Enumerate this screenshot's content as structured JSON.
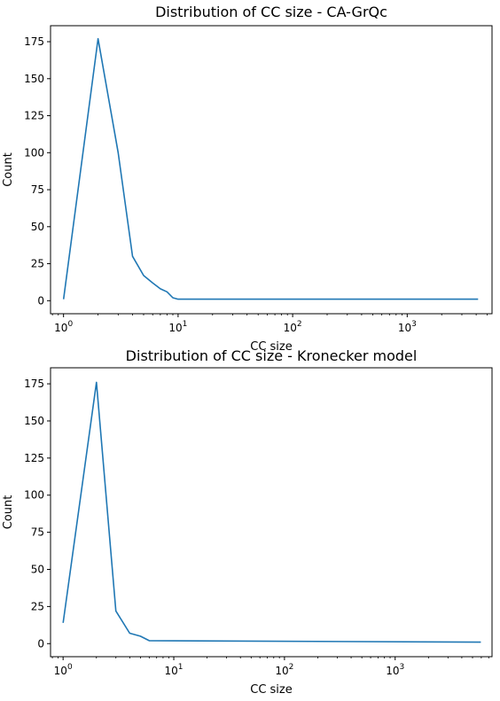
{
  "chart_data": [
    {
      "type": "line",
      "title": "Distribution of CC size - CA-GrQc",
      "xlabel": "CC size",
      "ylabel": "Count",
      "xscale": "log",
      "xlim": [
        0.77,
        5500
      ],
      "ylim": [
        -8.8,
        185.8
      ],
      "grid": false,
      "xticks": [
        {
          "value": 1,
          "label": "10",
          "exp": "0"
        },
        {
          "value": 10,
          "label": "10",
          "exp": "1"
        },
        {
          "value": 100,
          "label": "10",
          "exp": "2"
        },
        {
          "value": 1000,
          "label": "10",
          "exp": "3"
        }
      ],
      "yticks": [
        0,
        25,
        50,
        75,
        100,
        125,
        150,
        175
      ],
      "series": [
        {
          "color": "#1f77b4",
          "x": [
            1,
            2,
            3,
            4,
            5,
            6,
            7,
            8,
            9,
            10,
            11,
            4158
          ],
          "y": [
            1,
            177,
            100,
            30,
            17,
            12,
            8,
            6,
            2,
            1,
            1,
            1
          ]
        }
      ]
    },
    {
      "type": "line",
      "title": "Distribution of CC size - Kronecker model",
      "xlabel": "CC size",
      "ylabel": "Count",
      "xscale": "log",
      "xlim": [
        0.77,
        7500
      ],
      "ylim": [
        -8.8,
        185.8
      ],
      "grid": false,
      "xticks": [
        {
          "value": 1,
          "label": "10",
          "exp": "0"
        },
        {
          "value": 10,
          "label": "10",
          "exp": "1"
        },
        {
          "value": 100,
          "label": "10",
          "exp": "2"
        },
        {
          "value": 1000,
          "label": "10",
          "exp": "3"
        }
      ],
      "yticks": [
        0,
        25,
        50,
        75,
        100,
        125,
        150,
        175
      ],
      "series": [
        {
          "color": "#1f77b4",
          "x": [
            1,
            2,
            3,
            4,
            5,
            6,
            5940
          ],
          "y": [
            14,
            176,
            22,
            7,
            5,
            2,
            1
          ]
        }
      ]
    }
  ]
}
